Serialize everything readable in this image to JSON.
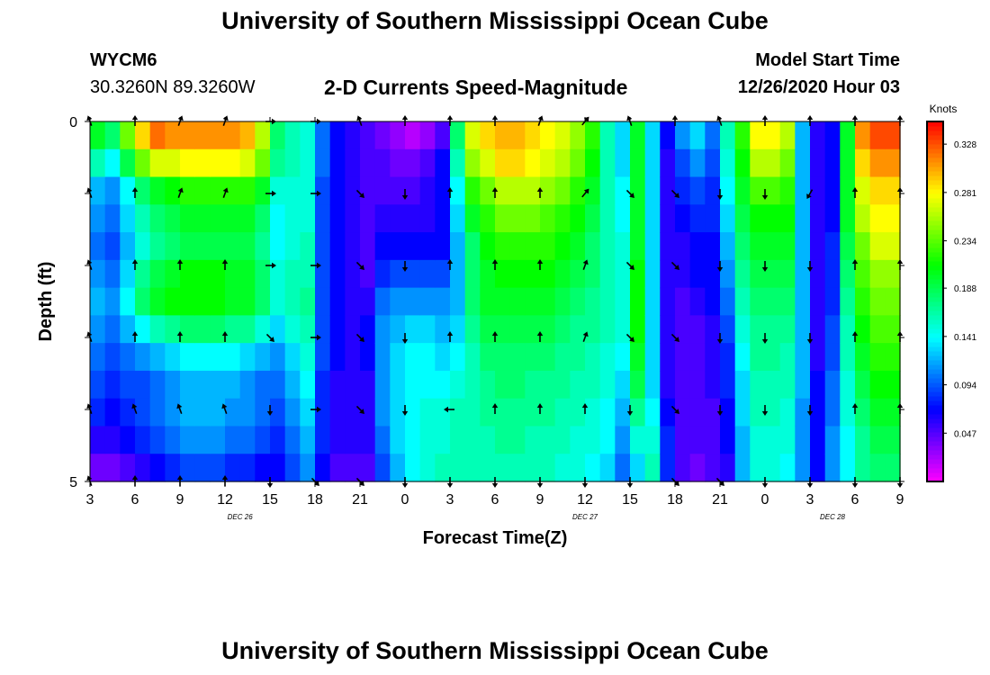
{
  "header": {
    "title": "University of Southern Mississippi Ocean Cube",
    "station_id": "WYCM6",
    "station_coords": "30.3260N 89.3260W",
    "plot_title": "2-D Currents Speed-Magnitude",
    "model_start_label": "Model Start Time",
    "model_start_value": "12/26/2020 Hour 03"
  },
  "footer": {
    "title": "University of Southern Mississippi Ocean Cube"
  },
  "chart_data": {
    "type": "heatmap",
    "title": "2-D Currents Speed-Magnitude",
    "xlabel": "Forecast Time(Z)",
    "ylabel": "Depth (ft)",
    "xlim": [
      0,
      54
    ],
    "ylim": [
      0,
      5
    ],
    "x_ticks": [
      {
        "pos": 0,
        "label": "3"
      },
      {
        "pos": 3,
        "label": "6"
      },
      {
        "pos": 6,
        "label": "9"
      },
      {
        "pos": 9,
        "label": "12"
      },
      {
        "pos": 12,
        "label": "15"
      },
      {
        "pos": 15,
        "label": "18"
      },
      {
        "pos": 18,
        "label": "21"
      },
      {
        "pos": 21,
        "label": "0"
      },
      {
        "pos": 24,
        "label": "3"
      },
      {
        "pos": 27,
        "label": "6"
      },
      {
        "pos": 30,
        "label": "9"
      },
      {
        "pos": 33,
        "label": "12"
      },
      {
        "pos": 36,
        "label": "15"
      },
      {
        "pos": 39,
        "label": "18"
      },
      {
        "pos": 42,
        "label": "21"
      },
      {
        "pos": 45,
        "label": "0"
      },
      {
        "pos": 48,
        "label": "3"
      },
      {
        "pos": 51,
        "label": "6"
      },
      {
        "pos": 54,
        "label": "9"
      }
    ],
    "day_labels": [
      {
        "pos": 10,
        "label": "DEC 26"
      },
      {
        "pos": 33,
        "label": "DEC 27"
      },
      {
        "pos": 49.5,
        "label": "DEC 28"
      }
    ],
    "y_ticks": [
      {
        "depth": 0,
        "label": "0"
      },
      {
        "depth": 1,
        "label": ""
      },
      {
        "depth": 2,
        "label": ""
      },
      {
        "depth": 3,
        "label": ""
      },
      {
        "depth": 4,
        "label": ""
      },
      {
        "depth": 5,
        "label": "5"
      }
    ],
    "colorbar": {
      "unit": "Knots",
      "range": [
        0.0,
        0.35
      ],
      "ticks": [
        0.047,
        0.094,
        0.141,
        0.188,
        0.234,
        0.281,
        0.328
      ],
      "tick_labels": [
        "0.047",
        "0.094",
        "0.141",
        "0.188",
        "0.234",
        "0.281",
        "0.328"
      ]
    },
    "depth_layers": 5,
    "time_step_hours": 1,
    "speed_knots": [
      [
        0.2,
        0.16,
        0.12,
        0.11,
        0.1,
        0.11,
        0.12,
        0.11,
        0.1,
        0.09,
        0.08,
        0.06,
        0.04
      ],
      [
        0.18,
        0.14,
        0.11,
        0.1,
        0.09,
        0.1,
        0.11,
        0.1,
        0.09,
        0.08,
        0.07,
        0.06,
        0.04
      ],
      [
        0.24,
        0.19,
        0.14,
        0.13,
        0.12,
        0.13,
        0.14,
        0.12,
        0.1,
        0.09,
        0.08,
        0.07,
        0.05
      ],
      [
        0.29,
        0.24,
        0.18,
        0.16,
        0.15,
        0.17,
        0.18,
        0.14,
        0.11,
        0.09,
        0.09,
        0.08,
        0.06
      ],
      [
        0.32,
        0.27,
        0.2,
        0.18,
        0.17,
        0.19,
        0.2,
        0.16,
        0.12,
        0.1,
        0.1,
        0.09,
        0.07
      ],
      [
        0.31,
        0.27,
        0.21,
        0.19,
        0.18,
        0.2,
        0.21,
        0.17,
        0.13,
        0.11,
        0.11,
        0.1,
        0.08
      ],
      [
        0.31,
        0.28,
        0.22,
        0.2,
        0.19,
        0.21,
        0.21,
        0.18,
        0.14,
        0.12,
        0.12,
        0.11,
        0.09
      ],
      [
        0.31,
        0.28,
        0.22,
        0.2,
        0.19,
        0.21,
        0.21,
        0.18,
        0.14,
        0.12,
        0.12,
        0.11,
        0.09
      ],
      [
        0.31,
        0.28,
        0.22,
        0.2,
        0.19,
        0.21,
        0.21,
        0.18,
        0.14,
        0.12,
        0.12,
        0.11,
        0.09
      ],
      [
        0.31,
        0.28,
        0.22,
        0.2,
        0.19,
        0.2,
        0.2,
        0.17,
        0.14,
        0.12,
        0.11,
        0.1,
        0.08
      ],
      [
        0.3,
        0.27,
        0.22,
        0.2,
        0.19,
        0.2,
        0.2,
        0.17,
        0.13,
        0.11,
        0.11,
        0.1,
        0.08
      ],
      [
        0.26,
        0.24,
        0.2,
        0.18,
        0.17,
        0.18,
        0.18,
        0.15,
        0.12,
        0.1,
        0.1,
        0.09,
        0.07
      ],
      [
        0.18,
        0.17,
        0.15,
        0.14,
        0.14,
        0.15,
        0.15,
        0.13,
        0.11,
        0.1,
        0.09,
        0.08,
        0.07
      ],
      [
        0.16,
        0.16,
        0.15,
        0.15,
        0.15,
        0.16,
        0.16,
        0.15,
        0.13,
        0.12,
        0.11,
        0.1,
        0.09
      ],
      [
        0.15,
        0.15,
        0.15,
        0.15,
        0.16,
        0.16,
        0.17,
        0.16,
        0.15,
        0.14,
        0.13,
        0.12,
        0.11
      ],
      [
        0.1,
        0.1,
        0.09,
        0.09,
        0.09,
        0.09,
        0.09,
        0.09,
        0.09,
        0.08,
        0.08,
        0.08,
        0.07
      ],
      [
        0.07,
        0.07,
        0.07,
        0.07,
        0.07,
        0.07,
        0.07,
        0.07,
        0.07,
        0.06,
        0.06,
        0.06,
        0.05
      ],
      [
        0.06,
        0.06,
        0.06,
        0.06,
        0.06,
        0.06,
        0.06,
        0.06,
        0.06,
        0.06,
        0.06,
        0.06,
        0.05
      ],
      [
        0.05,
        0.05,
        0.05,
        0.05,
        0.05,
        0.05,
        0.06,
        0.07,
        0.07,
        0.06,
        0.06,
        0.06,
        0.05
      ],
      [
        0.04,
        0.05,
        0.05,
        0.06,
        0.07,
        0.08,
        0.1,
        0.11,
        0.11,
        0.11,
        0.11,
        0.1,
        0.09
      ],
      [
        0.03,
        0.04,
        0.05,
        0.06,
        0.07,
        0.09,
        0.11,
        0.12,
        0.13,
        0.13,
        0.13,
        0.13,
        0.12
      ],
      [
        0.02,
        0.04,
        0.05,
        0.06,
        0.07,
        0.09,
        0.11,
        0.13,
        0.14,
        0.14,
        0.14,
        0.14,
        0.14
      ],
      [
        0.03,
        0.05,
        0.06,
        0.06,
        0.07,
        0.09,
        0.11,
        0.13,
        0.14,
        0.14,
        0.15,
        0.15,
        0.15
      ],
      [
        0.05,
        0.07,
        0.07,
        0.07,
        0.07,
        0.09,
        0.11,
        0.12,
        0.13,
        0.14,
        0.15,
        0.15,
        0.16
      ],
      [
        0.18,
        0.16,
        0.14,
        0.13,
        0.12,
        0.12,
        0.12,
        0.13,
        0.14,
        0.15,
        0.16,
        0.16,
        0.16
      ],
      [
        0.27,
        0.25,
        0.22,
        0.2,
        0.18,
        0.18,
        0.18,
        0.17,
        0.16,
        0.16,
        0.16,
        0.16,
        0.16
      ],
      [
        0.29,
        0.27,
        0.24,
        0.22,
        0.21,
        0.2,
        0.2,
        0.19,
        0.18,
        0.17,
        0.17,
        0.16,
        0.16
      ],
      [
        0.3,
        0.29,
        0.26,
        0.24,
        0.22,
        0.21,
        0.2,
        0.19,
        0.18,
        0.18,
        0.17,
        0.17,
        0.16
      ],
      [
        0.3,
        0.29,
        0.26,
        0.24,
        0.22,
        0.21,
        0.2,
        0.19,
        0.18,
        0.18,
        0.17,
        0.17,
        0.16
      ],
      [
        0.29,
        0.28,
        0.26,
        0.24,
        0.22,
        0.21,
        0.2,
        0.19,
        0.18,
        0.17,
        0.17,
        0.16,
        0.16
      ],
      [
        0.28,
        0.27,
        0.25,
        0.23,
        0.22,
        0.21,
        0.2,
        0.19,
        0.18,
        0.17,
        0.17,
        0.16,
        0.16
      ],
      [
        0.27,
        0.26,
        0.24,
        0.22,
        0.21,
        0.2,
        0.19,
        0.18,
        0.17,
        0.17,
        0.16,
        0.16,
        0.15
      ],
      [
        0.25,
        0.24,
        0.22,
        0.21,
        0.2,
        0.19,
        0.18,
        0.17,
        0.17,
        0.16,
        0.16,
        0.15,
        0.15
      ],
      [
        0.22,
        0.21,
        0.2,
        0.19,
        0.18,
        0.18,
        0.17,
        0.17,
        0.16,
        0.16,
        0.15,
        0.15,
        0.14
      ],
      [
        0.16,
        0.16,
        0.16,
        0.16,
        0.16,
        0.16,
        0.16,
        0.16,
        0.15,
        0.15,
        0.14,
        0.14,
        0.13
      ],
      [
        0.13,
        0.13,
        0.14,
        0.14,
        0.15,
        0.15,
        0.15,
        0.15,
        0.14,
        0.13,
        0.12,
        0.11,
        0.1
      ],
      [
        0.2,
        0.2,
        0.2,
        0.2,
        0.2,
        0.21,
        0.21,
        0.21,
        0.2,
        0.19,
        0.17,
        0.15,
        0.13
      ],
      [
        0.13,
        0.13,
        0.13,
        0.13,
        0.13,
        0.13,
        0.13,
        0.13,
        0.13,
        0.13,
        0.14,
        0.15,
        0.16
      ],
      [
        0.07,
        0.06,
        0.06,
        0.06,
        0.06,
        0.06,
        0.06,
        0.06,
        0.06,
        0.06,
        0.07,
        0.08,
        0.08
      ],
      [
        0.11,
        0.09,
        0.08,
        0.07,
        0.06,
        0.06,
        0.05,
        0.05,
        0.05,
        0.05,
        0.05,
        0.05,
        0.05
      ],
      [
        0.13,
        0.11,
        0.09,
        0.08,
        0.07,
        0.07,
        0.06,
        0.05,
        0.05,
        0.05,
        0.05,
        0.05,
        0.04
      ],
      [
        0.1,
        0.09,
        0.08,
        0.08,
        0.07,
        0.07,
        0.07,
        0.06,
        0.06,
        0.06,
        0.05,
        0.05,
        0.05
      ],
      [
        0.16,
        0.15,
        0.14,
        0.13,
        0.12,
        0.11,
        0.1,
        0.09,
        0.08,
        0.08,
        0.07,
        0.07,
        0.06
      ],
      [
        0.22,
        0.21,
        0.2,
        0.19,
        0.18,
        0.17,
        0.16,
        0.15,
        0.14,
        0.13,
        0.13,
        0.12,
        0.12
      ],
      [
        0.28,
        0.26,
        0.23,
        0.21,
        0.2,
        0.19,
        0.18,
        0.17,
        0.17,
        0.16,
        0.16,
        0.15,
        0.15
      ],
      [
        0.28,
        0.26,
        0.23,
        0.21,
        0.2,
        0.19,
        0.18,
        0.17,
        0.17,
        0.16,
        0.16,
        0.15,
        0.15
      ],
      [
        0.26,
        0.24,
        0.22,
        0.21,
        0.2,
        0.19,
        0.18,
        0.17,
        0.16,
        0.16,
        0.15,
        0.15,
        0.14
      ],
      [
        0.12,
        0.12,
        0.12,
        0.12,
        0.12,
        0.12,
        0.12,
        0.12,
        0.12,
        0.12,
        0.11,
        0.11,
        0.11
      ],
      [
        0.06,
        0.06,
        0.06,
        0.06,
        0.06,
        0.06,
        0.06,
        0.06,
        0.06,
        0.07,
        0.07,
        0.07,
        0.07
      ],
      [
        0.07,
        0.07,
        0.07,
        0.07,
        0.08,
        0.08,
        0.08,
        0.09,
        0.09,
        0.1,
        0.1,
        0.11,
        0.11
      ],
      [
        0.2,
        0.2,
        0.2,
        0.2,
        0.19,
        0.18,
        0.17,
        0.16,
        0.16,
        0.15,
        0.15,
        0.14,
        0.14
      ],
      [
        0.31,
        0.29,
        0.27,
        0.26,
        0.24,
        0.23,
        0.22,
        0.21,
        0.2,
        0.19,
        0.18,
        0.17,
        0.17
      ],
      [
        0.33,
        0.31,
        0.29,
        0.28,
        0.27,
        0.25,
        0.24,
        0.23,
        0.22,
        0.21,
        0.2,
        0.19,
        0.18
      ],
      [
        0.33,
        0.31,
        0.29,
        0.28,
        0.27,
        0.25,
        0.24,
        0.23,
        0.22,
        0.21,
        0.2,
        0.19,
        0.18
      ],
      [
        0.33,
        0.31,
        0.29,
        0.28,
        0.27,
        0.25,
        0.24,
        0.23,
        0.22,
        0.21,
        0.2,
        0.19,
        0.19
      ]
    ],
    "arrow_depths": [
      0,
      1,
      2,
      3,
      4,
      5
    ],
    "arrow_times": [
      0,
      3,
      6,
      9,
      12,
      15,
      18,
      21,
      24,
      27,
      30,
      33,
      36,
      39,
      42,
      45,
      48,
      51,
      54
    ],
    "arrow_directions_deg": [
      [
        160,
        180,
        200,
        200,
        270,
        270,
        160,
        180,
        180,
        180,
        200,
        220,
        160,
        180,
        160,
        180,
        180,
        180,
        180
      ],
      [
        160,
        180,
        200,
        200,
        270,
        270,
        315,
        0,
        180,
        180,
        180,
        220,
        315,
        315,
        0,
        0,
        30,
        180,
        180
      ],
      [
        160,
        180,
        180,
        180,
        270,
        270,
        315,
        0,
        180,
        180,
        180,
        200,
        315,
        315,
        0,
        0,
        0,
        180,
        180
      ],
      [
        160,
        180,
        180,
        180,
        315,
        270,
        315,
        0,
        180,
        180,
        180,
        200,
        315,
        315,
        0,
        0,
        0,
        180,
        180
      ],
      [
        160,
        160,
        160,
        160,
        0,
        270,
        315,
        0,
        90,
        180,
        180,
        180,
        0,
        315,
        0,
        0,
        0,
        180,
        180
      ],
      [
        160,
        180,
        180,
        180,
        0,
        315,
        315,
        0,
        0,
        0,
        0,
        0,
        0,
        315,
        315,
        0,
        0,
        0,
        0
      ]
    ]
  }
}
